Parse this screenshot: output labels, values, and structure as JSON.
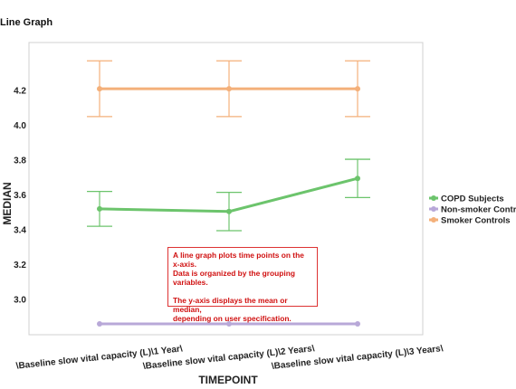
{
  "page": {
    "title": "Line Graph"
  },
  "annotation": {
    "line1": "A line graph plots time points on the x-axis.",
    "line2": "Data is organized by the grouping variables.",
    "line3": "The y-axis displays the mean or median,",
    "line4": "depending on user specification."
  },
  "chart_data": {
    "type": "line",
    "title": "",
    "xlabel": "TIMEPOINT",
    "ylabel": "MEDIAN",
    "categories": [
      "\\Baseline slow vital capacity (L)\\1 Year\\",
      "\\Baseline slow vital capacity (L)\\2 Years\\",
      "\\Baseline slow vital capacity (L)\\3 Years\\"
    ],
    "ylim": [
      2.75,
      4.45
    ],
    "yticks": [
      "3.0",
      "3.2",
      "3.4",
      "3.6",
      "3.8",
      "4.0",
      "4.2"
    ],
    "grid": false,
    "legend_position": "right",
    "series": [
      {
        "name": "COPD Subjects",
        "color": "#6cc46c",
        "values": [
          3.52,
          3.505,
          3.695
        ],
        "error_low": [
          3.42,
          3.395,
          3.585
        ],
        "error_high": [
          3.62,
          3.615,
          3.805
        ]
      },
      {
        "name": "Non-smoker Controls",
        "color": "#b8a8d8",
        "values": [
          2.86,
          2.86,
          2.86
        ],
        "error_low": null,
        "error_high": null
      },
      {
        "name": "Smoker Controls",
        "color": "#f4b07a",
        "values": [
          4.21,
          4.21,
          4.21
        ],
        "error_low": [
          4.05,
          4.05,
          4.05
        ],
        "error_high": [
          4.37,
          4.37,
          4.37
        ]
      }
    ]
  }
}
